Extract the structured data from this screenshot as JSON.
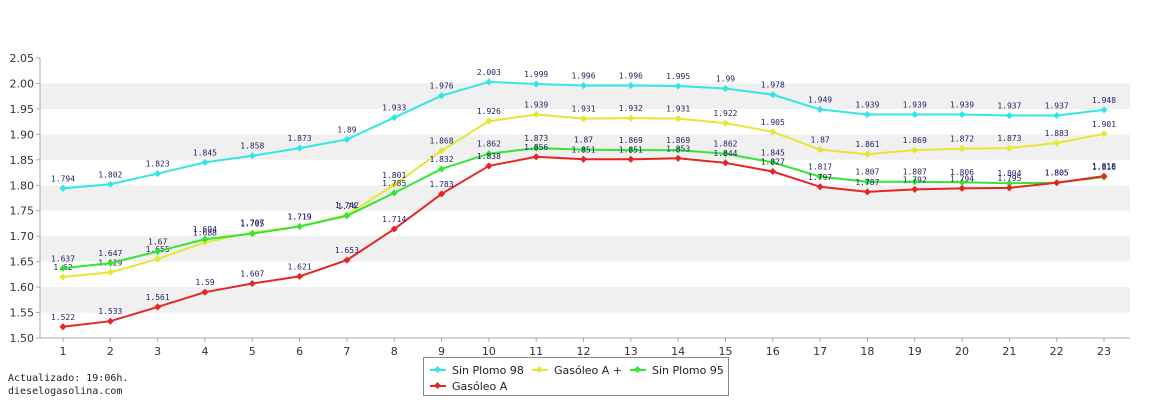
{
  "chart_data": {
    "type": "line",
    "x": [
      1,
      2,
      3,
      4,
      5,
      6,
      7,
      8,
      9,
      10,
      11,
      12,
      13,
      14,
      15,
      16,
      17,
      18,
      19,
      20,
      21,
      22,
      23
    ],
    "ylim": [
      1.5,
      2.05
    ],
    "yticks": [
      "1.50",
      "1.55",
      "1.60",
      "1.65",
      "1.70",
      "1.75",
      "1.80",
      "1.85",
      "1.90",
      "1.95",
      "2.00",
      "2.05"
    ],
    "grid": "horizontal-bands",
    "legend_position": "bottom-center",
    "series": [
      {
        "name": "Sin Plomo 98",
        "color": "#33e6e6",
        "values": [
          1.794,
          1.802,
          1.823,
          1.845,
          1.858,
          1.873,
          1.89,
          1.933,
          1.976,
          2.003,
          1.999,
          1.996,
          1.996,
          1.995,
          1.99,
          1.978,
          1.949,
          1.939,
          1.939,
          1.939,
          1.937,
          1.937,
          1.948
        ],
        "labels": [
          "1.794",
          "1.802",
          "1.823",
          "1.845",
          "1.858",
          "1.873",
          "1.89",
          "1.933",
          "1.976",
          "2.003",
          "1.999",
          "1.996",
          "1.996",
          "1.995",
          "1.99",
          "1.978",
          "1.949",
          "1.939",
          "1.939",
          "1.939",
          "1.937",
          "1.937",
          "1.948"
        ]
      },
      {
        "name": "Gasóleo A +",
        "color": "#e6e633",
        "values": [
          1.62,
          1.629,
          1.655,
          1.688,
          1.707,
          1.719,
          1.742,
          1.801,
          1.868,
          1.926,
          1.939,
          1.931,
          1.932,
          1.931,
          1.922,
          1.905,
          1.87,
          1.861,
          1.869,
          1.872,
          1.873,
          1.883,
          1.901
        ],
        "labels": [
          "1.62",
          "1.629",
          "1.655",
          "1.688",
          "1.707",
          "1.719",
          "1.742",
          "1.801",
          "1.868",
          "1.926",
          "1.939",
          "1.931",
          "1.932",
          "1.931",
          "1.922",
          "1.905",
          "1.87",
          "1.861",
          "1.869",
          "1.872",
          "1.873",
          "1.883",
          "1.901"
        ]
      },
      {
        "name": "Sin Plomo 95",
        "color": "#33e633",
        "values": [
          1.637,
          1.647,
          1.67,
          1.694,
          1.705,
          1.719,
          1.74,
          1.785,
          1.832,
          1.862,
          1.873,
          1.87,
          1.869,
          1.869,
          1.862,
          1.845,
          1.817,
          1.807,
          1.807,
          1.806,
          1.804,
          1.805,
          1.816
        ],
        "labels": [
          "1.637",
          "1.647",
          "1.67",
          "1.694",
          "1.705",
          "1.719",
          "1.74",
          "1.785",
          "1.832",
          "1.862",
          "1.873",
          "1.87",
          "1.869",
          "1.869",
          "1.862",
          "1.845",
          "1.817",
          "1.807",
          "1.807",
          "1.806",
          "1.804",
          "1.805",
          "1.816"
        ]
      },
      {
        "name": "Gasóleo A",
        "color": "#e62626",
        "values": [
          1.522,
          1.533,
          1.561,
          1.59,
          1.607,
          1.621,
          1.653,
          1.714,
          1.783,
          1.838,
          1.856,
          1.851,
          1.851,
          1.853,
          1.844,
          1.827,
          1.797,
          1.787,
          1.792,
          1.794,
          1.795,
          1.805,
          1.818
        ],
        "labels": [
          "1.522",
          "1.533",
          "1.561",
          "1.59",
          "1.607",
          "1.621",
          "1.653",
          "1.714",
          "1.783",
          "1.838",
          "1.856",
          "1.851",
          "1.851",
          "1.853",
          "1.844",
          "1.827",
          "1.797",
          "1.787",
          "1.792",
          "1.794",
          "1.795",
          "1.805",
          "1.818"
        ]
      }
    ]
  },
  "footer": {
    "updated": "Actualizado: 19:06h.",
    "site": "dieselogasolina.com"
  }
}
